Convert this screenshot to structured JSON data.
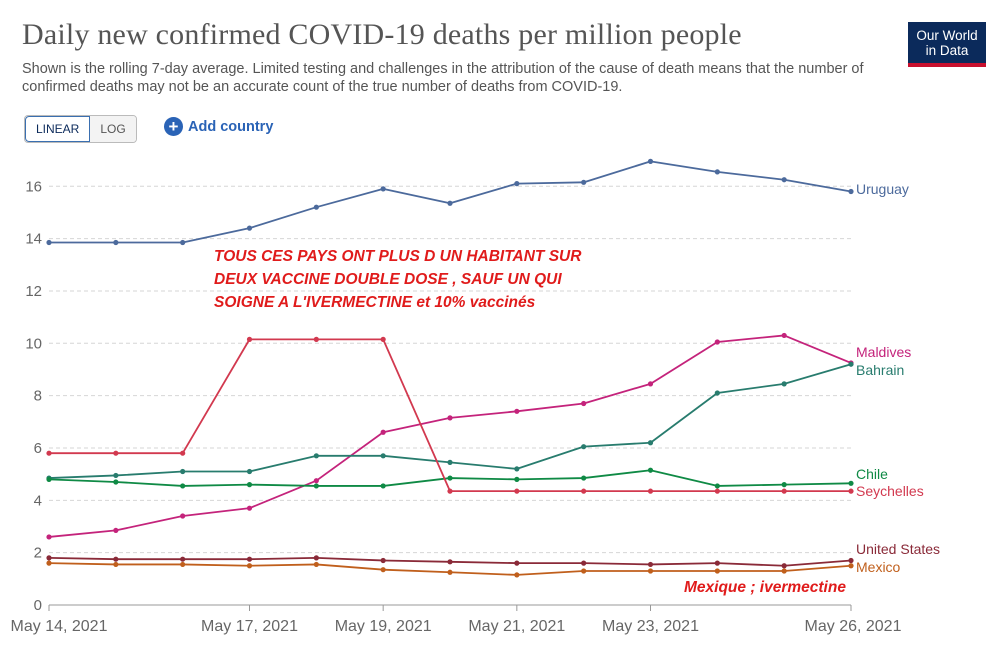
{
  "header": {
    "title": "Daily new confirmed COVID-19 deaths per million people",
    "subtitle": "Shown is the rolling 7-day average. Limited testing and challenges in the attribution of the cause of death means that the number of confirmed deaths may not be an accurate count of the true number of deaths from COVID-19.",
    "logo_line1": "Our World",
    "logo_line2": "in Data"
  },
  "controls": {
    "linear_label": "LINEAR",
    "log_label": "LOG",
    "add_country_label": "Add country"
  },
  "annotations": {
    "main_line1": "TOUS CES PAYS ONT PLUS D UN HABITANT SUR",
    "main_line2": "DEUX VACCINE DOUBLE DOSE   , SAUF UN QUI",
    "main_line3": "SOIGNE A L'IVERMECTINE  et 10% vaccinés",
    "mexico_note": "Mexique ; ivermectine",
    "color": "#e01b1b"
  },
  "chart_data": {
    "type": "line",
    "x": [
      "2021-05-14",
      "2021-05-15",
      "2021-05-16",
      "2021-05-17",
      "2021-05-18",
      "2021-05-19",
      "2021-05-20",
      "2021-05-21",
      "2021-05-22",
      "2021-05-23",
      "2021-05-24",
      "2021-05-25",
      "2021-05-26"
    ],
    "x_tick_labels": [
      "May 14, 2021",
      "May 17, 2021",
      "May 19, 2021",
      "May 21, 2021",
      "May 23, 2021",
      "May 26, 2021"
    ],
    "x_tick_dates": [
      "2021-05-14",
      "2021-05-17",
      "2021-05-19",
      "2021-05-21",
      "2021-05-23",
      "2021-05-26"
    ],
    "y_ticks": [
      0,
      2,
      4,
      6,
      8,
      10,
      12,
      14,
      16
    ],
    "ylim": [
      0,
      17.5
    ],
    "grid": true,
    "legend": "right-end labels",
    "series": [
      {
        "name": "Uruguay",
        "color": "#4c6a9c",
        "values": [
          13.85,
          13.85,
          13.85,
          14.4,
          15.2,
          15.9,
          15.35,
          16.1,
          16.15,
          16.95,
          16.55,
          16.25,
          15.8
        ]
      },
      {
        "name": "Maldives",
        "color": "#c4237b",
        "values": [
          2.6,
          2.85,
          3.4,
          3.7,
          4.75,
          6.6,
          7.15,
          7.4,
          7.7,
          8.45,
          10.05,
          10.3,
          9.25
        ]
      },
      {
        "name": "Bahrain",
        "color": "#287c6e",
        "values": [
          4.85,
          4.95,
          5.1,
          5.1,
          5.7,
          5.7,
          5.45,
          5.2,
          6.05,
          6.2,
          8.1,
          8.45,
          9.2
        ]
      },
      {
        "name": "Chile",
        "color": "#0f8a45",
        "values": [
          4.8,
          4.7,
          4.55,
          4.6,
          4.55,
          4.55,
          4.85,
          4.8,
          4.85,
          5.15,
          4.55,
          4.6,
          4.65
        ]
      },
      {
        "name": "Seychelles",
        "color": "#d2394f",
        "values": [
          5.8,
          5.8,
          5.8,
          10.15,
          10.15,
          10.15,
          4.35,
          4.35,
          4.35,
          4.35,
          4.35,
          4.35,
          4.35
        ]
      },
      {
        "name": "United States",
        "color": "#8a2a38",
        "values": [
          1.8,
          1.75,
          1.75,
          1.75,
          1.8,
          1.7,
          1.65,
          1.6,
          1.6,
          1.55,
          1.6,
          1.5,
          1.7
        ]
      },
      {
        "name": "Mexico",
        "color": "#c05f1c",
        "values": [
          1.6,
          1.55,
          1.55,
          1.5,
          1.55,
          1.35,
          1.25,
          1.15,
          1.3,
          1.3,
          1.3,
          1.3,
          1.5
        ]
      }
    ]
  }
}
